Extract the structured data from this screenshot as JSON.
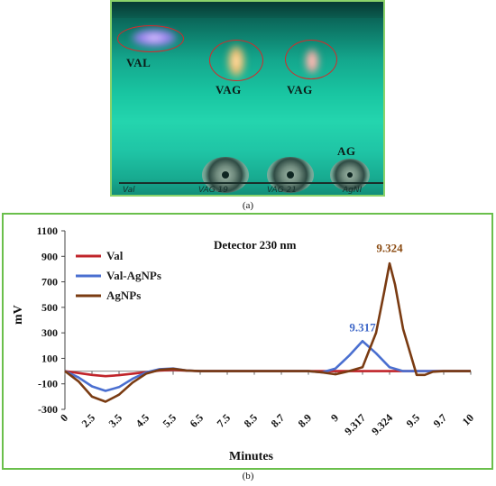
{
  "panel_a": {
    "labels": {
      "val": "VAL",
      "vag1": "VAG",
      "vag2": "VAG",
      "ag": "AG"
    },
    "handwriting": [
      "Val",
      "VAG 19",
      "VAG 21",
      "AgNI"
    ],
    "caption": "(a)"
  },
  "panel_b": {
    "caption": "(b)"
  },
  "chart_data": {
    "type": "line",
    "title": "Detector 230 nm",
    "xlabel": "Minutes",
    "ylabel": "mV",
    "ylim": [
      -300,
      1100
    ],
    "y_ticks": [
      1100,
      900,
      700,
      500,
      300,
      100,
      -100,
      -300
    ],
    "x_tick_labels": [
      "0",
      "2.5",
      "3.5",
      "4.5",
      "5.5",
      "6.5",
      "7.5",
      "8.5",
      "8.7",
      "8.9",
      "9",
      "9.317",
      "9.324",
      "9.5",
      "9.7",
      "10"
    ],
    "grid": false,
    "legend_position": "top-left",
    "series": [
      {
        "name": "Val",
        "color": "#c0242a",
        "x": [
          0,
          0.5,
          1,
          1.5,
          2,
          2.5,
          3,
          3.5,
          4,
          4.5,
          5,
          6,
          7,
          8,
          9,
          9.5,
          10,
          10.2,
          10.5,
          11,
          11.5,
          12,
          12.5,
          13,
          13.5,
          14,
          15
        ],
        "y": [
          0,
          -15,
          -30,
          -40,
          -32,
          -20,
          -8,
          5,
          10,
          3,
          0,
          0,
          0,
          0,
          0,
          0,
          0,
          0,
          0,
          0,
          0,
          0,
          0,
          0,
          0,
          0,
          0
        ]
      },
      {
        "name": "Val-AgNPs",
        "color": "#4a6fd0",
        "x": [
          0,
          0.5,
          1,
          1.5,
          2,
          2.5,
          3,
          3.5,
          4,
          4.5,
          5,
          6,
          7,
          8,
          9,
          9.5,
          10,
          10.5,
          11,
          11.5,
          12,
          12.5,
          13,
          13.5,
          14,
          15
        ],
        "y": [
          0,
          -50,
          -120,
          -155,
          -125,
          -60,
          -10,
          15,
          20,
          5,
          0,
          0,
          0,
          0,
          0,
          -10,
          20,
          120,
          235,
          140,
          30,
          0,
          0,
          0,
          0,
          0
        ]
      },
      {
        "name": "AgNPs",
        "color": "#7a3b12",
        "x": [
          0,
          0.5,
          1,
          1.5,
          2,
          2.5,
          3,
          3.5,
          4,
          4.5,
          5,
          6,
          7,
          8,
          9,
          9.5,
          10,
          10.5,
          11,
          11.5,
          11.8,
          12,
          12.2,
          12.5,
          13,
          13.3,
          13.6,
          14,
          15
        ],
        "y": [
          0,
          -80,
          -200,
          -240,
          -185,
          -90,
          -20,
          10,
          18,
          5,
          0,
          0,
          0,
          0,
          0,
          -10,
          -25,
          0,
          30,
          300,
          620,
          845,
          680,
          330,
          -30,
          -30,
          -5,
          0,
          0
        ]
      }
    ],
    "annotations": [
      {
        "text": "9.317",
        "x": 11.0,
        "y": 310,
        "color": "#3f68c8"
      },
      {
        "text": "9.324",
        "x": 12.0,
        "y": 935,
        "color": "#8a4a10"
      }
    ]
  }
}
